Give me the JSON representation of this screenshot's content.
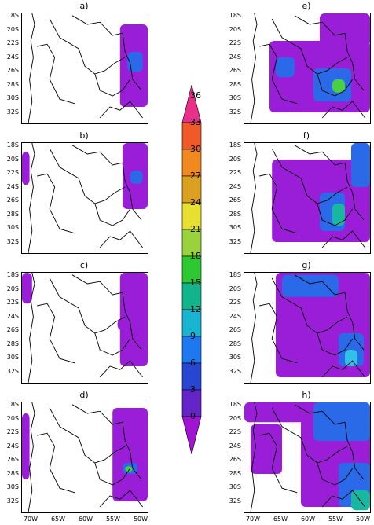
{
  "panels": [
    {
      "label": "a)"
    },
    {
      "label": "b)"
    },
    {
      "label": "c)"
    },
    {
      "label": "d)"
    },
    {
      "label": "e)"
    },
    {
      "label": "f)"
    },
    {
      "label": "g)"
    },
    {
      "label": "h)"
    }
  ],
  "lat_ticks": [
    "18S",
    "20S",
    "22S",
    "24S",
    "26S",
    "28S",
    "30S",
    "32S"
  ],
  "lon_ticks": [
    "70W",
    "65W",
    "60W",
    "55W",
    "50W"
  ],
  "colorbar": {
    "levels": [
      "36",
      "33",
      "30",
      "27",
      "24",
      "21",
      "18",
      "15",
      "12",
      "9",
      "6",
      "3",
      "0"
    ],
    "colors": [
      "#e8308a",
      "#f05a28",
      "#f08a1e",
      "#dca020",
      "#e8e030",
      "#9ad23c",
      "#2ec832",
      "#12b48c",
      "#18b4d0",
      "#1e78f0",
      "#2846d2",
      "#6424c8",
      "#a014d2"
    ]
  },
  "colors": {
    "violet": "#9a1ed8",
    "purple": "#6a24d0",
    "blue": "#2a6ae8",
    "cyan": "#30c0e8",
    "teal": "#18b8a0",
    "green": "#48d040",
    "yellow": "#e8e030"
  }
}
